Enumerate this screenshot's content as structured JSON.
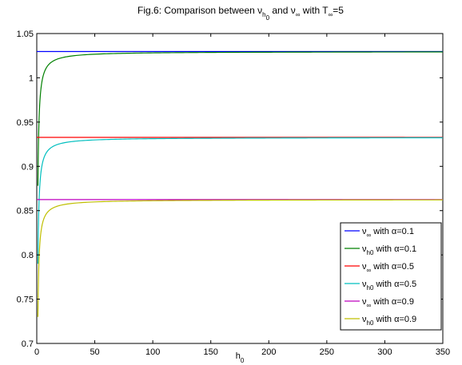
{
  "chart_data": {
    "type": "line",
    "title": {
      "prefix": "Fig.6: Comparison between ",
      "nu1": "ν",
      "nu1_sub": "h",
      "nu1_subsub": "0",
      "mid": " and ",
      "nu2": "ν",
      "nu2_sub": "∞",
      "mid2": " with T",
      "t_sub": "∞",
      "suffix": "=5"
    },
    "xlabel": {
      "main": "h",
      "sub": "0"
    },
    "ylabel": "",
    "xlim": [
      0,
      350
    ],
    "ylim": [
      0.7,
      1.05
    ],
    "xticks": [
      "0",
      "50",
      "100",
      "150",
      "200",
      "250",
      "300",
      "350"
    ],
    "yticks": [
      "0.7",
      "0.75",
      "0.8",
      "0.85",
      "0.9",
      "0.95",
      "1",
      "1.05"
    ],
    "grid": false,
    "legend_position": "lower-right",
    "series": [
      {
        "name": "ν∞ with α=0.1",
        "legend": {
          "sym": "ν",
          "sub": "∞",
          "text": " with α=0.1"
        },
        "kind": "constant",
        "value": 1.0297,
        "color": "#0000ff"
      },
      {
        "name": "νh0 with α=0.1",
        "legend": {
          "sym": "ν",
          "sub": "h0",
          "text": " with α=0.1"
        },
        "kind": "curve",
        "asymptote": 1.0297,
        "start": 0.878,
        "x_start": 1,
        "coef": 0.19,
        "color": "#008000"
      },
      {
        "name": "ν∞ with α=0.5",
        "legend": {
          "sym": "ν",
          "sub": "∞",
          "text": " with α=0.5"
        },
        "kind": "constant",
        "value": 0.9327,
        "color": "#ff0000"
      },
      {
        "name": "νh0 with α=0.5",
        "legend": {
          "sym": "ν",
          "sub": "h0",
          "text": " with α=0.5"
        },
        "kind": "curve",
        "asymptote": 0.9327,
        "start": 0.79,
        "x_start": 1,
        "coef": 0.22,
        "color": "#00bfbf"
      },
      {
        "name": "ν∞ with α=0.9",
        "legend": {
          "sym": "ν",
          "sub": "∞",
          "text": " with α=0.9"
        },
        "kind": "constant",
        "value": 0.8625,
        "color": "#bf00bf"
      },
      {
        "name": "νh0 with α=0.9",
        "legend": {
          "sym": "ν",
          "sub": "h0",
          "text": " with α=0.9"
        },
        "kind": "curve",
        "asymptote": 0.8625,
        "start": 0.73,
        "x_start": 1,
        "coef": 0.24,
        "color": "#bfbf00"
      }
    ]
  }
}
